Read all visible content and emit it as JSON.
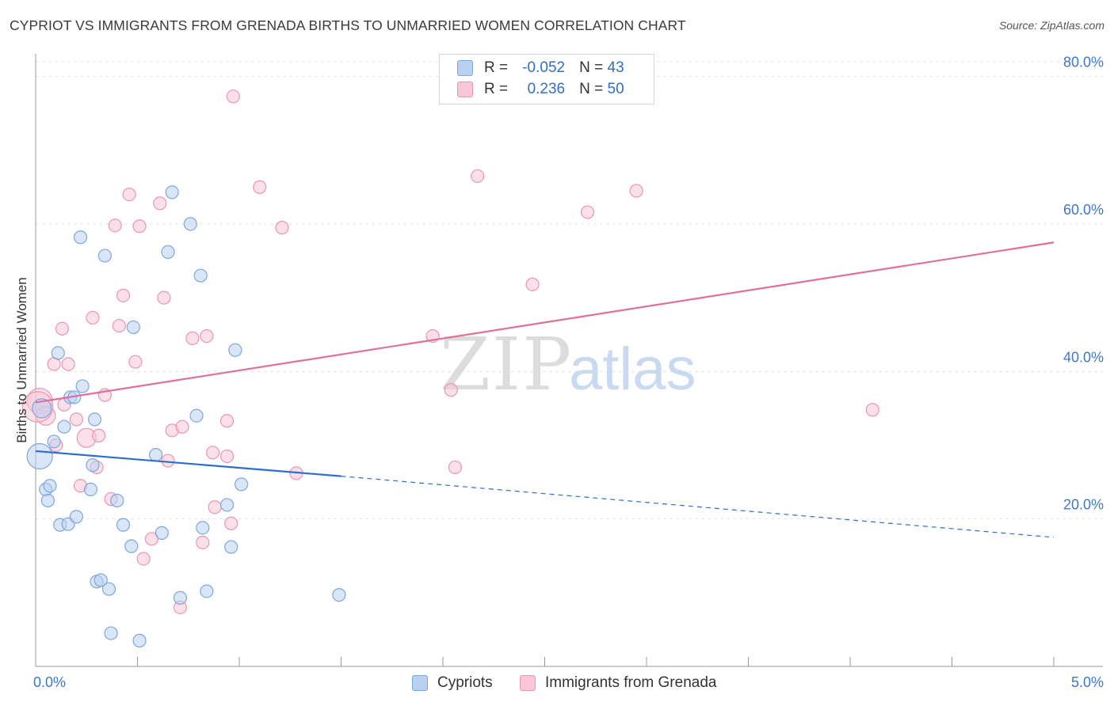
{
  "title": "CYPRIOT VS IMMIGRANTS FROM GRENADA BIRTHS TO UNMARRIED WOMEN CORRELATION CHART",
  "source": "Source: ZipAtlas.com",
  "watermark": {
    "zip": "ZIP",
    "atlas": "atlas"
  },
  "legend": {
    "r_label": "R =",
    "n_label": "N =",
    "series": [
      {
        "name": "Cypriots",
        "r": "-0.052",
        "n": "43"
      },
      {
        "name": "Immigrants from Grenada",
        "r": "0.236",
        "n": "50"
      }
    ]
  },
  "colors": {
    "blue_fill": "#b8d1f3",
    "blue_stroke": "#7ea6dc",
    "blue_line": "#2d6ecb",
    "pink_fill": "#f9c6d6",
    "pink_stroke": "#e995b1",
    "pink_line": "#e07098",
    "tick_label": "#3d77c9",
    "grid": "#e3e3e3"
  },
  "chart_data": {
    "type": "scatter",
    "xlabel": "",
    "ylabel": "Births to Unmarried Women",
    "xlim": [
      0,
      5
    ],
    "ylim": [
      0,
      82
    ],
    "x_tick_labels": [
      "0.0%",
      "5.0%"
    ],
    "y_ticks": [
      20,
      40,
      60,
      80
    ],
    "y_tick_labels": [
      "20.0%",
      "40.0%",
      "60.0%",
      "80.0%"
    ],
    "grid": true,
    "legend_position": "top-center",
    "series": [
      {
        "name": "Cypriots",
        "color": "#b8d1f3",
        "points": [
          [
            0.02,
            28.5,
            2
          ],
          [
            0.03,
            35,
            1.5
          ],
          [
            0.05,
            24,
            1
          ],
          [
            0.07,
            24.5,
            1
          ],
          [
            0.06,
            22.5,
            1
          ],
          [
            0.09,
            30.5,
            1
          ],
          [
            0.11,
            42.5,
            1
          ],
          [
            0.12,
            19.2,
            1
          ],
          [
            0.14,
            32.5,
            1
          ],
          [
            0.16,
            19.3,
            1
          ],
          [
            0.17,
            36.5,
            1
          ],
          [
            0.19,
            36.5,
            1
          ],
          [
            0.2,
            20.3,
            1
          ],
          [
            0.23,
            38,
            1
          ],
          [
            0.22,
            58.2,
            1
          ],
          [
            0.27,
            24,
            1
          ],
          [
            0.28,
            27.3,
            1
          ],
          [
            0.29,
            33.5,
            1
          ],
          [
            0.3,
            11.5,
            1
          ],
          [
            0.32,
            11.7,
            1
          ],
          [
            0.34,
            55.7,
            1
          ],
          [
            0.36,
            10.5,
            1
          ],
          [
            0.37,
            4.5,
            1
          ],
          [
            0.4,
            22.5,
            1
          ],
          [
            0.43,
            19.2,
            1
          ],
          [
            0.47,
            16.3,
            1
          ],
          [
            0.48,
            46,
            1
          ],
          [
            0.51,
            3.5,
            1
          ],
          [
            0.59,
            28.7,
            1
          ],
          [
            0.62,
            18.1,
            1
          ],
          [
            0.65,
            56.2,
            1
          ],
          [
            0.67,
            64.3,
            1
          ],
          [
            0.71,
            9.3,
            1
          ],
          [
            0.76,
            60,
            1
          ],
          [
            0.79,
            34,
            1
          ],
          [
            0.81,
            53,
            1
          ],
          [
            0.82,
            18.8,
            1
          ],
          [
            0.84,
            10.2,
            1
          ],
          [
            0.94,
            21.9,
            1
          ],
          [
            0.96,
            16.2,
            1
          ],
          [
            0.98,
            42.9,
            1
          ],
          [
            1.01,
            24.7,
            1
          ],
          [
            1.49,
            9.7,
            1
          ]
        ],
        "trend": {
          "x0": 0,
          "y0": 29.2,
          "x1": 1.5,
          "y1": 25.8,
          "dashed_to_x": 5,
          "dashed_to_y": 17.5
        }
      },
      {
        "name": "Immigrants from Grenada",
        "color": "#f9c6d6",
        "points": [
          [
            0.02,
            36,
            2
          ],
          [
            0.05,
            34,
            1.5
          ],
          [
            0.13,
            45.8,
            1
          ],
          [
            0.09,
            41,
            1
          ],
          [
            0.1,
            30,
            1
          ],
          [
            0.14,
            35.5,
            1
          ],
          [
            0.16,
            41,
            1
          ],
          [
            0.2,
            33.5,
            1
          ],
          [
            0.22,
            24.5,
            1
          ],
          [
            0.25,
            31,
            1.5
          ],
          [
            0.28,
            47.3,
            1
          ],
          [
            0.3,
            27,
            1
          ],
          [
            0.31,
            31.3,
            1
          ],
          [
            0.34,
            36.8,
            1
          ],
          [
            0.37,
            22.7,
            1
          ],
          [
            0.39,
            59.8,
            1
          ],
          [
            0.41,
            46.2,
            1
          ],
          [
            0.43,
            50.3,
            1
          ],
          [
            0.46,
            64,
            1
          ],
          [
            0.49,
            41.3,
            1
          ],
          [
            0.51,
            59.7,
            1
          ],
          [
            0.53,
            14.6,
            1
          ],
          [
            0.57,
            17.3,
            1
          ],
          [
            0.61,
            62.8,
            1
          ],
          [
            0.63,
            50,
            1
          ],
          [
            0.65,
            27.9,
            1
          ],
          [
            0.67,
            32,
            1
          ],
          [
            0.71,
            8,
            1
          ],
          [
            0.72,
            32.5,
            1
          ],
          [
            0.77,
            44.5,
            1
          ],
          [
            0.82,
            16.8,
            1
          ],
          [
            0.84,
            44.8,
            1
          ],
          [
            0.87,
            29,
            1
          ],
          [
            0.88,
            21.6,
            1
          ],
          [
            0.94,
            33.3,
            1
          ],
          [
            0.94,
            28.5,
            1
          ],
          [
            0.96,
            19.4,
            1
          ],
          [
            0.97,
            77.3,
            1
          ],
          [
            1.1,
            65,
            1
          ],
          [
            1.21,
            59.5,
            1
          ],
          [
            1.28,
            26.2,
            1
          ],
          [
            1.95,
            44.8,
            1
          ],
          [
            2.04,
            37.5,
            1
          ],
          [
            2.06,
            27,
            1
          ],
          [
            2.17,
            66.5,
            1
          ],
          [
            2.44,
            51.8,
            1
          ],
          [
            2.71,
            61.6,
            1
          ],
          [
            2.95,
            64.5,
            1
          ],
          [
            4.11,
            34.8,
            1
          ],
          [
            0.01,
            35.2,
            2.4
          ]
        ],
        "trend": {
          "x0": 0,
          "y0": 35.8,
          "x1": 5,
          "y1": 57.5
        }
      }
    ]
  }
}
